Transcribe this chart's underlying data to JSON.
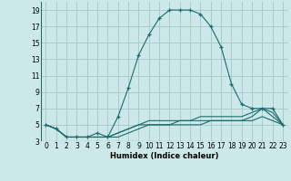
{
  "xlabel": "Humidex (Indice chaleur)",
  "bg_color": "#cce8e8",
  "grid_color": "#aacccc",
  "line_color": "#1a6b6b",
  "xlim": [
    -0.5,
    23.5
  ],
  "ylim": [
    3,
    20
  ],
  "xticks": [
    0,
    1,
    2,
    3,
    4,
    5,
    6,
    7,
    8,
    9,
    10,
    11,
    12,
    13,
    14,
    15,
    16,
    17,
    18,
    19,
    20,
    21,
    22,
    23
  ],
  "yticks": [
    3,
    5,
    7,
    9,
    11,
    13,
    15,
    17,
    19
  ],
  "series": [
    {
      "x": [
        0,
        1,
        2,
        3,
        4,
        5,
        6,
        7,
        8,
        9,
        10,
        11,
        12,
        13,
        14,
        15,
        16,
        17,
        18,
        19,
        20,
        21,
        22,
        23
      ],
      "y": [
        5,
        4.5,
        3.5,
        3.5,
        3.5,
        4,
        3.5,
        6,
        9.5,
        13.5,
        16,
        18,
        19,
        19,
        19,
        18.5,
        17,
        14.5,
        10,
        7.5,
        7,
        7,
        7,
        5
      ],
      "marker": true
    },
    {
      "x": [
        0,
        1,
        2,
        3,
        4,
        5,
        6,
        7,
        8,
        9,
        10,
        11,
        12,
        13,
        14,
        15,
        16,
        17,
        18,
        19,
        20,
        21,
        22,
        23
      ],
      "y": [
        5,
        4.5,
        3.5,
        3.5,
        3.5,
        3.5,
        3.5,
        4,
        4.5,
        5,
        5.5,
        5.5,
        5.5,
        5.5,
        5.5,
        5.5,
        5.5,
        5.5,
        5.5,
        5.5,
        6,
        7,
        6,
        5
      ],
      "marker": false
    },
    {
      "x": [
        0,
        1,
        2,
        3,
        4,
        5,
        6,
        7,
        8,
        9,
        10,
        11,
        12,
        13,
        14,
        15,
        16,
        17,
        18,
        19,
        20,
        21,
        22,
        23
      ],
      "y": [
        5,
        4.5,
        3.5,
        3.5,
        3.5,
        3.5,
        3.5,
        4,
        4.5,
        5,
        5,
        5,
        5,
        5.5,
        5.5,
        6,
        6,
        6,
        6,
        6,
        6.5,
        7,
        6.5,
        5
      ],
      "marker": false
    },
    {
      "x": [
        0,
        1,
        2,
        3,
        4,
        5,
        6,
        7,
        8,
        9,
        10,
        11,
        12,
        13,
        14,
        15,
        16,
        17,
        18,
        19,
        20,
        21,
        22,
        23
      ],
      "y": [
        5,
        4.5,
        3.5,
        3.5,
        3.5,
        3.5,
        3.5,
        3.5,
        4,
        4.5,
        5,
        5,
        5,
        5,
        5,
        5,
        5.5,
        5.5,
        5.5,
        5.5,
        5.5,
        6,
        5.5,
        5
      ],
      "marker": false
    }
  ]
}
